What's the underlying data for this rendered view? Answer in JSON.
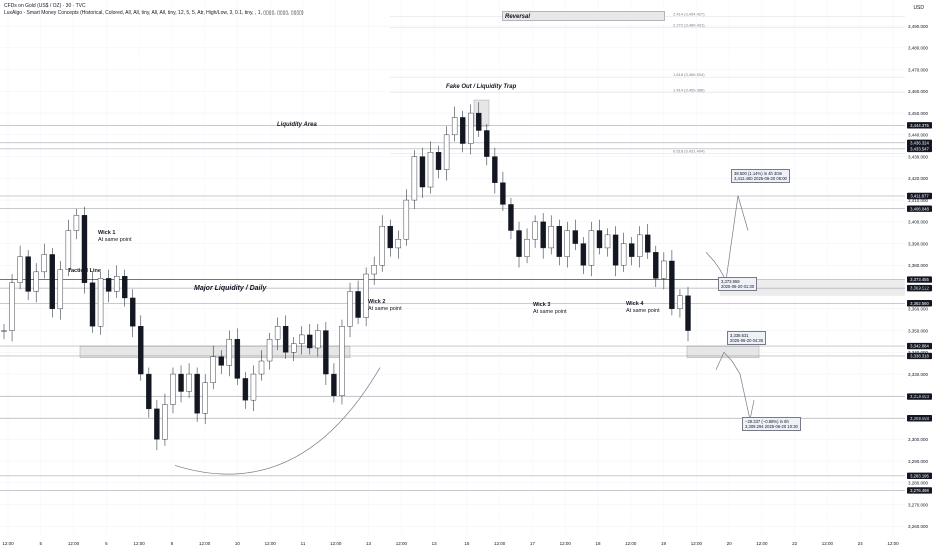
{
  "header": {
    "symbol_line": "CFDs on Gold (US$ / OZ) · 30 · TVC",
    "indicator_line": "LuxAlgo - Smart Money Concepts (Historical, Colored, All, All, tiny, All, All, tiny, 12, 5, 5, Atr, High/Low, 3, 0.1, tiny, , 1, ▯▯▯▯, ▯▯▯▯, ▯▯▯▯)"
  },
  "chart_data": {
    "type": "candlestick",
    "currency_label": "USD",
    "y_ticks": [
      3260,
      3270,
      3280,
      3290,
      3300,
      3310,
      3320,
      3330,
      3340,
      3350,
      3360,
      3370,
      3380,
      3390,
      3400,
      3410,
      3420,
      3430,
      3440,
      3450,
      3460,
      3470,
      3480,
      3490
    ],
    "ylim": [
      3256,
      3502
    ],
    "x_labels": [
      "12:00",
      "5",
      "12:00",
      "6",
      "12:00",
      "8",
      "12:00",
      "10",
      "12:00",
      "11",
      "12:00",
      "13",
      "12:00",
      "13",
      "15",
      "12:00",
      "17",
      "12:00",
      "18",
      "12:00",
      "19",
      "12:00",
      "20",
      "12:00",
      "22",
      "12:00",
      "24",
      "12:00"
    ],
    "price_series": [
      {
        "t": 0,
        "p": 3350
      },
      {
        "t": 1,
        "p": 3372
      },
      {
        "t": 2,
        "p": 3384
      },
      {
        "t": 3,
        "p": 3368
      },
      {
        "t": 4,
        "p": 3377
      },
      {
        "t": 5,
        "p": 3385
      },
      {
        "t": 6,
        "p": 3360
      },
      {
        "t": 7,
        "p": 3378
      },
      {
        "t": 8,
        "p": 3396
      },
      {
        "t": 9,
        "p": 3403
      },
      {
        "t": 10,
        "p": 3372
      },
      {
        "t": 11,
        "p": 3352
      },
      {
        "t": 12,
        "p": 3374
      },
      {
        "t": 13,
        "p": 3368
      },
      {
        "t": 14,
        "p": 3375
      },
      {
        "t": 15,
        "p": 3365
      },
      {
        "t": 16,
        "p": 3352
      },
      {
        "t": 17,
        "p": 3330
      },
      {
        "t": 18,
        "p": 3314
      },
      {
        "t": 19,
        "p": 3300
      },
      {
        "t": 20,
        "p": 3316
      },
      {
        "t": 21,
        "p": 3330
      },
      {
        "t": 22,
        "p": 3322
      },
      {
        "t": 23,
        "p": 3330
      },
      {
        "t": 24,
        "p": 3312
      },
      {
        "t": 25,
        "p": 3326
      },
      {
        "t": 26,
        "p": 3338
      },
      {
        "t": 27,
        "p": 3334
      },
      {
        "t": 28,
        "p": 3346
      },
      {
        "t": 29,
        "p": 3328
      },
      {
        "t": 30,
        "p": 3318
      },
      {
        "t": 31,
        "p": 3330
      },
      {
        "t": 32,
        "p": 3336
      },
      {
        "t": 33,
        "p": 3346
      },
      {
        "t": 34,
        "p": 3352
      },
      {
        "t": 35,
        "p": 3340
      },
      {
        "t": 36,
        "p": 3344
      },
      {
        "t": 37,
        "p": 3348
      },
      {
        "t": 38,
        "p": 3342
      },
      {
        "t": 39,
        "p": 3350
      },
      {
        "t": 40,
        "p": 3330
      },
      {
        "t": 41,
        "p": 3320
      },
      {
        "t": 42,
        "p": 3352
      },
      {
        "t": 43,
        "p": 3368
      },
      {
        "t": 44,
        "p": 3356
      },
      {
        "t": 45,
        "p": 3376
      },
      {
        "t": 46,
        "p": 3380
      },
      {
        "t": 47,
        "p": 3398
      },
      {
        "t": 48,
        "p": 3388
      },
      {
        "t": 49,
        "p": 3392
      },
      {
        "t": 50,
        "p": 3410
      },
      {
        "t": 51,
        "p": 3430
      },
      {
        "t": 52,
        "p": 3416
      },
      {
        "t": 53,
        "p": 3432
      },
      {
        "t": 54,
        "p": 3424
      },
      {
        "t": 55,
        "p": 3440
      },
      {
        "t": 56,
        "p": 3448
      },
      {
        "t": 57,
        "p": 3436
      },
      {
        "t": 58,
        "p": 3450
      },
      {
        "t": 59,
        "p": 3442
      },
      {
        "t": 60,
        "p": 3430
      },
      {
        "t": 61,
        "p": 3418
      },
      {
        "t": 62,
        "p": 3408
      },
      {
        "t": 63,
        "p": 3396
      },
      {
        "t": 64,
        "p": 3384
      },
      {
        "t": 65,
        "p": 3392
      },
      {
        "t": 66,
        "p": 3400
      },
      {
        "t": 67,
        "p": 3388
      },
      {
        "t": 68,
        "p": 3398
      },
      {
        "t": 69,
        "p": 3384
      },
      {
        "t": 70,
        "p": 3396
      },
      {
        "t": 71,
        "p": 3390
      },
      {
        "t": 72,
        "p": 3380
      },
      {
        "t": 73,
        "p": 3396
      },
      {
        "t": 74,
        "p": 3388
      },
      {
        "t": 75,
        "p": 3394
      },
      {
        "t": 76,
        "p": 3380
      },
      {
        "t": 77,
        "p": 3390
      },
      {
        "t": 78,
        "p": 3384
      },
      {
        "t": 79,
        "p": 3394
      },
      {
        "t": 80,
        "p": 3386
      },
      {
        "t": 81,
        "p": 3374
      },
      {
        "t": 82,
        "p": 3382
      },
      {
        "t": 83,
        "p": 3360
      },
      {
        "t": 84,
        "p": 3366
      },
      {
        "t": 85,
        "p": 3350
      }
    ],
    "levels": [
      {
        "price": 3444.375,
        "label": "3,444.375",
        "color": "#131722"
      },
      {
        "price": 3436.324,
        "label": "3,436.324",
        "color": "#131722"
      },
      {
        "price": 3433.547,
        "label": "3,433.547",
        "color": "#131722"
      },
      {
        "price": 3411.877,
        "label": "3,411.877",
        "color": "#131722"
      },
      {
        "price": 3406.048,
        "label": "3,406.048",
        "color": "#131722"
      },
      {
        "price": 3373.455,
        "label": "3,373.455",
        "color": "#131722"
      },
      {
        "price": 3369.512,
        "label": "3,369.512",
        "color": "#131722"
      },
      {
        "price": 3362.56,
        "label": "3,362.560",
        "color": "#131722"
      },
      {
        "price": 3342.884,
        "label": "3,342.884",
        "color": "#131722"
      },
      {
        "price": 3338.318,
        "label": "3,338.318",
        "color": "#131722"
      },
      {
        "price": 3319.653,
        "label": "3,319.653",
        "color": "#131722"
      },
      {
        "price": 3309.688,
        "label": "3,309.688",
        "color": "#131722"
      },
      {
        "price": 3283.195,
        "label": "3,283.195",
        "color": "#131722"
      },
      {
        "price": 3276.498,
        "label": "3,276.498",
        "color": "#131722"
      }
    ],
    "fib_labels": [
      {
        "text": "2.414 (3,494.427)",
        "price": 3494.4
      },
      {
        "text": "2.272 (3,489.431)",
        "price": 3489.4
      },
      {
        "text": "1.618 (3,466.534)",
        "price": 3466.5
      },
      {
        "text": "1.414 (3,459.386)",
        "price": 3459.4
      },
      {
        "text": "0.618 (3,431.494)",
        "price": 3431.5
      }
    ],
    "annotations": {
      "reversal": "Reversal",
      "fakeout": "Fake Out / Liquidity Trap",
      "liquidity_area": "Liquidity Area",
      "major_liquidity": "Major  Liquidity  / Daily",
      "tactical_line": "Tactical Line",
      "wick1": [
        "Wick 1",
        "At same point"
      ],
      "wick2": [
        "Wick 2",
        "At same point"
      ],
      "wick3": [
        "Wick 3",
        "At same point"
      ],
      "wick4": [
        "Wick 4",
        "At same point"
      ]
    },
    "projections": {
      "up": [
        "38.500 (1.14%) in 4h 30m",
        "3,412.460    2025-06-20  06:00"
      ],
      "mid_up": [
        "3,373.959",
        "2025-06-20 01:30"
      ],
      "mid_down": [
        "3,338.631",
        "2025-06-20 04:30"
      ],
      "down": [
        "−29.337 (−0.88%) in 6h",
        "3,309.294    2025-06-20  10:30"
      ]
    },
    "grid": true
  }
}
